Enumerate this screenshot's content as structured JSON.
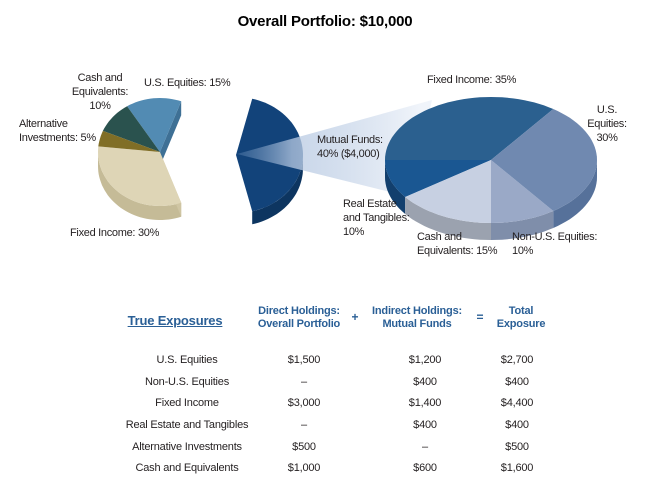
{
  "page_title": "Overall Portfolio: $10,000",
  "colors": {
    "header_blue": "#2A5F96",
    "label_text": "#231F20",
    "beam_light": "#EFF4FA"
  },
  "chart_data": [
    {
      "type": "pie",
      "name": "overall-portfolio",
      "title": "Overall Portfolio: $10,000",
      "total_usd": 10000,
      "slices": [
        {
          "label": "Mutual Funds",
          "pct": 40,
          "note": "$4,000",
          "color": "#12437A",
          "side_color": "#0D3560"
        },
        {
          "label": "U.S. Equities",
          "pct": 15,
          "color": "#528BB3",
          "face_color": "#3E7095"
        },
        {
          "label": "Cash and Equivalents",
          "pct": 10,
          "color": "#2A524E"
        },
        {
          "label": "Alternative Investments",
          "pct": 5,
          "color": "#806E26"
        },
        {
          "label": "Fixed Income",
          "pct": 30,
          "color": "#DED5B6",
          "side_color": "#C5BB97",
          "face_color": "#CFC5A3"
        }
      ]
    },
    {
      "type": "pie",
      "name": "mutual-funds-breakdown",
      "title": "Mutual Funds: 40% ($4,000)",
      "total_usd": 4000,
      "slices": [
        {
          "label": "Fixed Income",
          "pct": 35,
          "color": "#2B608F"
        },
        {
          "label": "U.S. Equities",
          "pct": 30,
          "color": "#7089B0",
          "side_color": "#56719A"
        },
        {
          "label": "Non-U.S. Equities",
          "pct": 10,
          "color": "#9AA9C7",
          "side_color": "#7F8EAA"
        },
        {
          "label": "Cash and Equivalents",
          "pct": 15,
          "color": "#C7D0E2",
          "side_color": "#9BA2AF"
        },
        {
          "label": "Real Estate and Tangibles",
          "pct": 10,
          "color": "#1A5792",
          "side_color": "#123F6D"
        }
      ]
    }
  ],
  "labels": {
    "left_cash": "Cash and\nEquivalents:\n10%",
    "left_us_equities": "U.S. Equities: 15%",
    "left_alternative": "Alternative\nInvestments: 5%",
    "left_fixed": "Fixed Income: 30%",
    "mutual_funds": "Mutual Funds:\n40% ($4,000)",
    "right_fixed": "Fixed Income: 35%",
    "right_us_equities": "U.S. Equities:\n30%",
    "right_real_estate": "Real Estate\nand Tangibles:\n10%",
    "right_cash": "Cash and\nEquivalents: 15%",
    "right_non_us": "Non-U.S. Equities:\n10%"
  },
  "table": {
    "title": "True Exposures",
    "col_headers": [
      "Direct Holdings:\nOverall Portfolio",
      "Indirect Holdings:\nMutual Funds",
      "Total\nExposure"
    ],
    "operators": [
      "+",
      "="
    ],
    "rows": [
      [
        "U.S. Equities",
        "$1,500",
        "$1,200",
        "$2,700"
      ],
      [
        "Non-U.S. Equities",
        "–",
        "$400",
        "$400"
      ],
      [
        "Fixed Income",
        "$3,000",
        "$1,400",
        "$4,400"
      ],
      [
        "Real Estate and Tangibles",
        "–",
        "$400",
        "$400"
      ],
      [
        "Alternative Investments",
        "$500",
        "–",
        "$500"
      ],
      [
        "Cash and Equivalents",
        "$1,000",
        "$600",
        "$1,600"
      ]
    ]
  }
}
